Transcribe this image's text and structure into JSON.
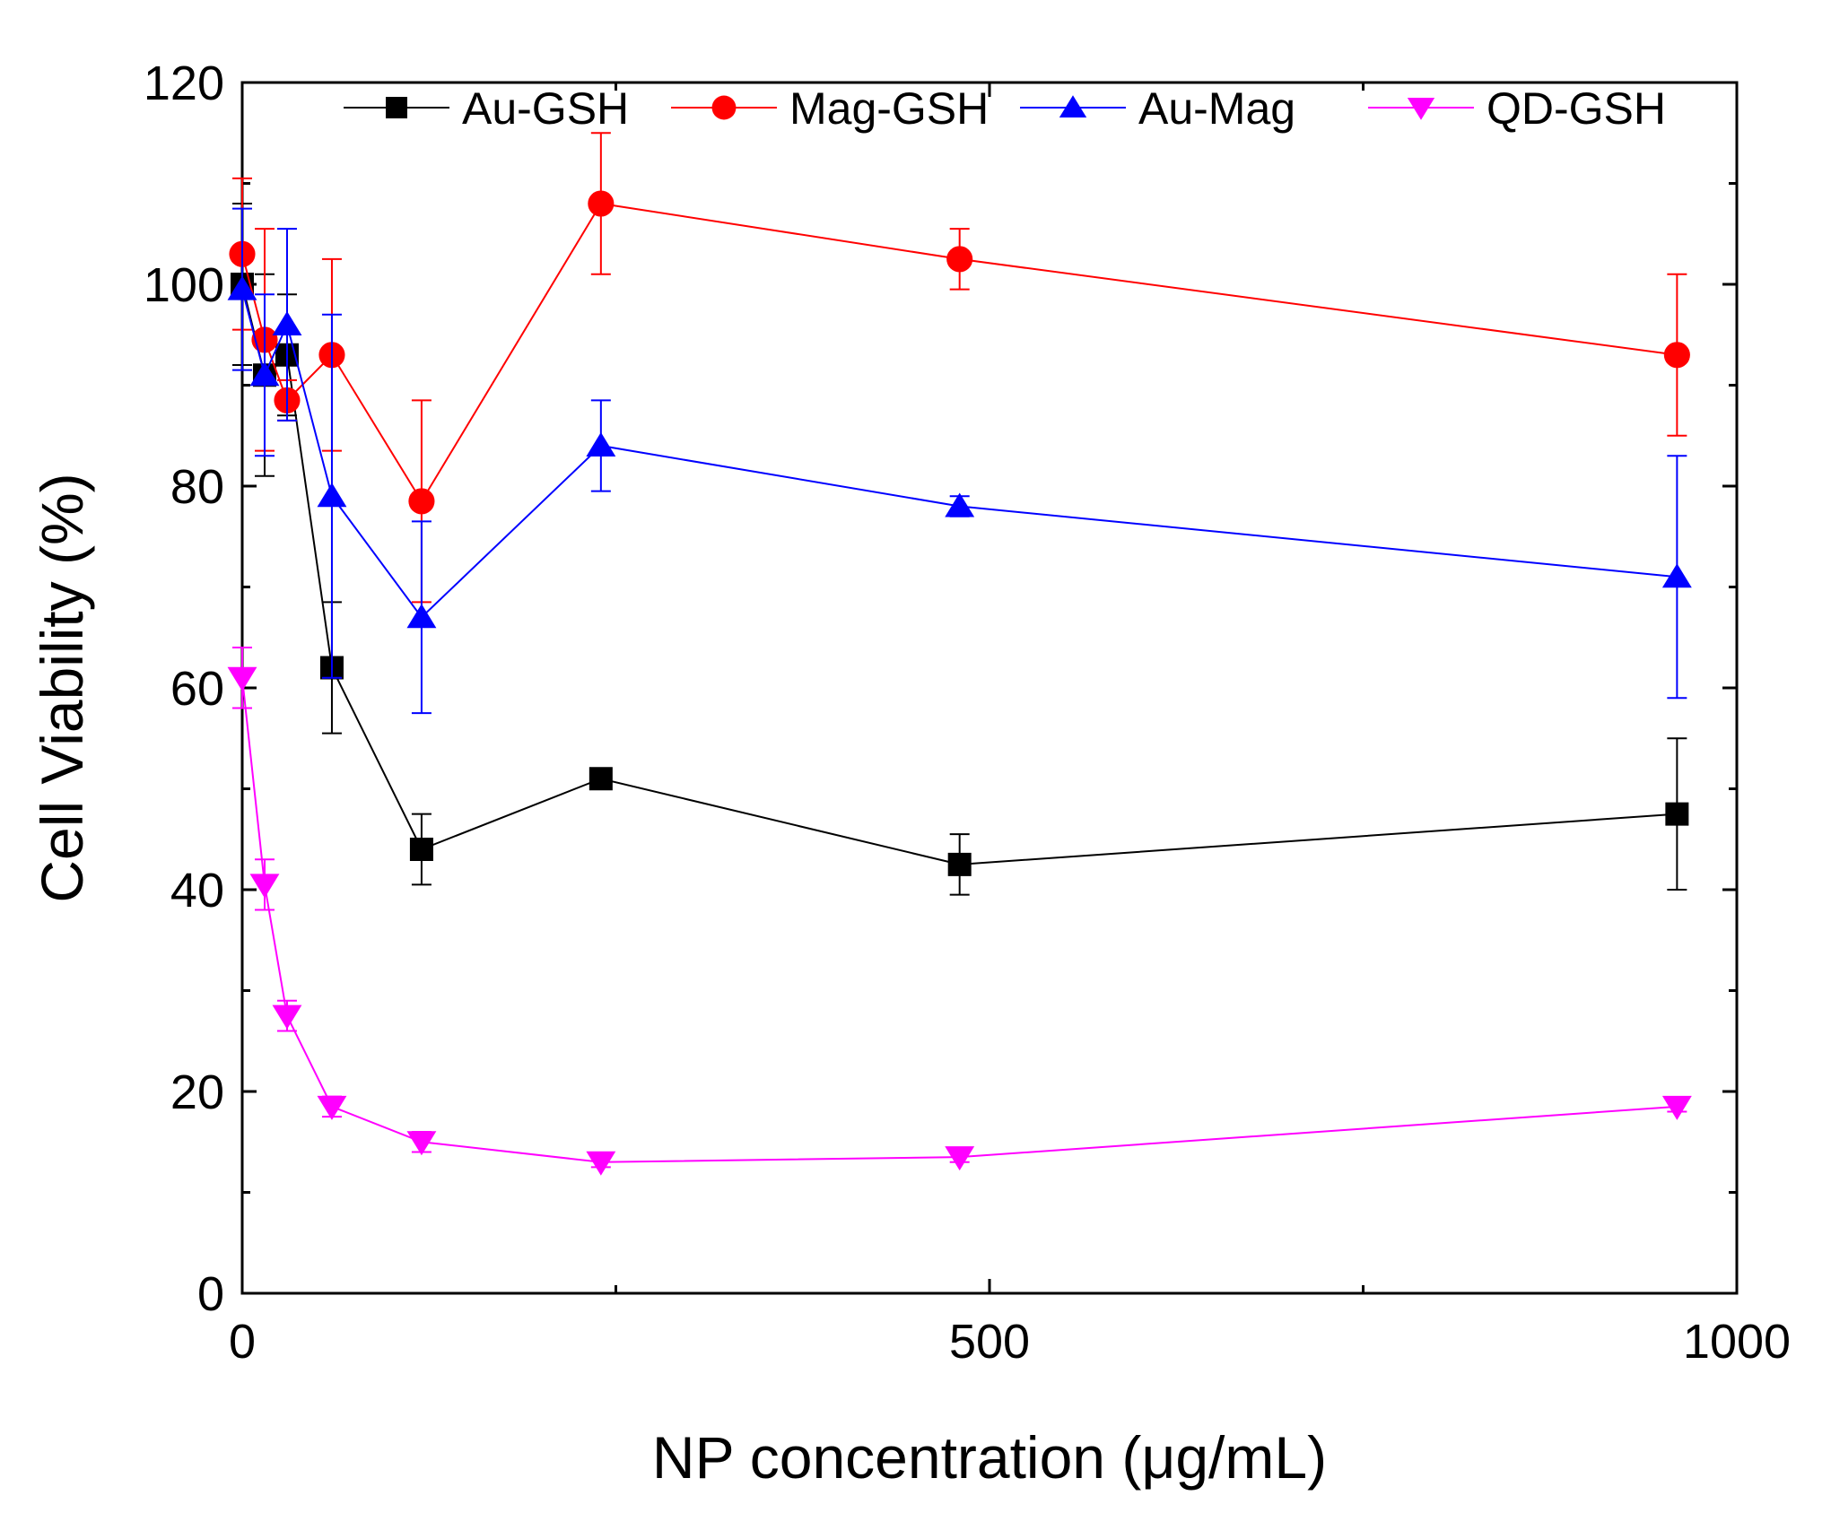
{
  "chart_data": {
    "type": "line",
    "title": "",
    "xlabel": "NP concentration (μg/mL)",
    "ylabel": "Cell Viability (%)",
    "xlim": [
      0,
      1000
    ],
    "ylim": [
      0,
      120
    ],
    "xticks": [
      "0",
      "500",
      "1000"
    ],
    "yticks": [
      "0",
      "20",
      "40",
      "60",
      "80",
      "100",
      "120"
    ],
    "legend_position": "top",
    "x": [
      0,
      15,
      30,
      60,
      120,
      240,
      480,
      960
    ],
    "series": [
      {
        "name": "Au-GSH",
        "color": "#000000",
        "marker": "square",
        "values": [
          100,
          91,
          93,
          62,
          44,
          51,
          42.5,
          47.5
        ],
        "errors": [
          8,
          10,
          6,
          6.5,
          3.5,
          0,
          3,
          7.5
        ]
      },
      {
        "name": "Mag-GSH",
        "color": "#ff0000",
        "marker": "circle",
        "values": [
          103,
          94.5,
          88.5,
          93,
          78.5,
          108,
          102.5,
          93
        ],
        "errors": [
          7.5,
          11,
          2,
          9.5,
          10,
          7,
          3,
          8
        ]
      },
      {
        "name": "Au-Mag",
        "color": "#0000ff",
        "marker": "triangle-up",
        "values": [
          99.5,
          91,
          96,
          79,
          67,
          84,
          78,
          71
        ],
        "errors": [
          8,
          8,
          9.5,
          18,
          9.5,
          4.5,
          1,
          12
        ]
      },
      {
        "name": "QD-GSH",
        "color": "#ff00ff",
        "marker": "triangle-down",
        "values": [
          61,
          40.5,
          27.5,
          18.5,
          15,
          13,
          13.5,
          18.5
        ],
        "errors": [
          3,
          2.5,
          1.5,
          1,
          1,
          0.5,
          0.5,
          0.5
        ]
      }
    ]
  }
}
